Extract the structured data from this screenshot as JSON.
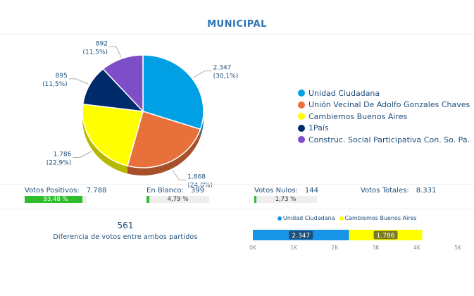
{
  "title": "MUNICIPAL",
  "chart_data": [
    {
      "type": "pie",
      "slices": [
        {
          "name": "Unidad Ciudadana",
          "value": 2347,
          "label_value": "2.347",
          "label_pct": "(30,1%)",
          "color": "#01a0e4"
        },
        {
          "name": "Unión Vecinal De Adolfo Gonzales Chaves",
          "value": 1868,
          "label_value": "1.868",
          "label_pct": "(24,0%)",
          "color": "#e8703a"
        },
        {
          "name": "Cambiemos Buenos Aires",
          "value": 1786,
          "label_value": "1.786",
          "label_pct": "(22,9%)",
          "color": "#ffff00"
        },
        {
          "name": "1País",
          "value": 895,
          "label_value": "895",
          "label_pct": "(11,5%)",
          "color": "#002b6b"
        },
        {
          "name": "Construc. Social Participativa Con. So. Pa.",
          "value": 892,
          "label_value": "892",
          "label_pct": "(11,5%)",
          "color": "#7e4ec8"
        }
      ],
      "legend_position": "right"
    },
    {
      "type": "bar",
      "orientation": "horizontal",
      "stacked": true,
      "series": [
        {
          "name": "Unidad Ciudadana",
          "value": 2347,
          "label": "2.347",
          "color": "#1794e6"
        },
        {
          "name": "Cambiemos Buenos Aires",
          "value": 1786,
          "label": "1.786",
          "color": "#ffff00"
        }
      ],
      "xlim": [
        0,
        5000
      ],
      "x_ticks": [
        "0K",
        "1K",
        "2K",
        "3K",
        "4K",
        "5K"
      ],
      "legend_position": "top"
    }
  ],
  "stats": [
    {
      "label": "Votos Positivos:",
      "value": "7.788",
      "pct": "93,48 %",
      "fraction": 0.9348
    },
    {
      "label": "En Blanco:",
      "value": "399",
      "pct": "4,79 %",
      "fraction": 0.0479
    },
    {
      "label": "Votos Nulos:",
      "value": "144",
      "pct": "1,73 %",
      "fraction": 0.0173
    },
    {
      "label": "Votos Totales:",
      "value": "8.331"
    }
  ],
  "difference": {
    "value": "561",
    "label": "Diferencia de votos entre ambos partidos"
  }
}
